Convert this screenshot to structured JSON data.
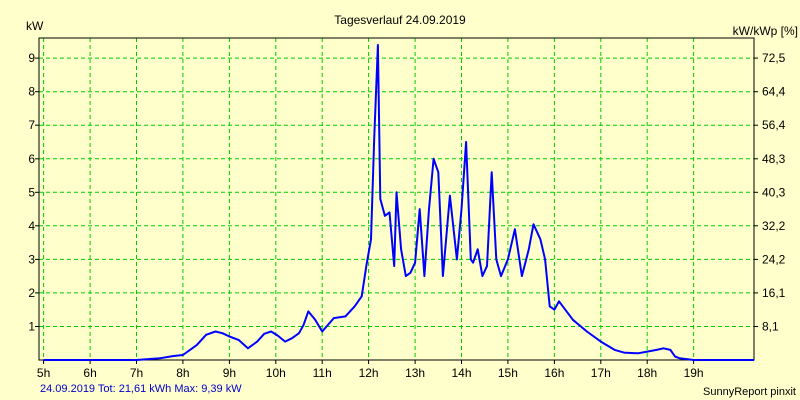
{
  "chart_data": {
    "type": "line",
    "title": "Tagesverlauf 24.09.2019",
    "ylabel_left": "kW",
    "ylabel_right": "kW/kWp [%]",
    "xlim": [
      4.9,
      20.3
    ],
    "ylim": [
      0,
      9.6
    ],
    "x_ticks": [
      {
        "value": 5,
        "label": "5h"
      },
      {
        "value": 6,
        "label": "6h"
      },
      {
        "value": 7,
        "label": "7h"
      },
      {
        "value": 8,
        "label": "8h"
      },
      {
        "value": 9,
        "label": "9h"
      },
      {
        "value": 10,
        "label": "10h"
      },
      {
        "value": 11,
        "label": "11h"
      },
      {
        "value": 12,
        "label": "12h"
      },
      {
        "value": 13,
        "label": "13h"
      },
      {
        "value": 14,
        "label": "14h"
      },
      {
        "value": 15,
        "label": "15h"
      },
      {
        "value": 16,
        "label": "16h"
      },
      {
        "value": 17,
        "label": "17h"
      },
      {
        "value": 18,
        "label": "18h"
      },
      {
        "value": 19,
        "label": "19h"
      }
    ],
    "y_ticks_left": [
      {
        "value": 1,
        "label": "1"
      },
      {
        "value": 2,
        "label": "2"
      },
      {
        "value": 3,
        "label": "3"
      },
      {
        "value": 4,
        "label": "4"
      },
      {
        "value": 5,
        "label": "5"
      },
      {
        "value": 6,
        "label": "6"
      },
      {
        "value": 7,
        "label": "7"
      },
      {
        "value": 8,
        "label": "8"
      },
      {
        "value": 9,
        "label": "9"
      }
    ],
    "y_ticks_right": [
      {
        "value": 1,
        "label": "8,1"
      },
      {
        "value": 2,
        "label": "16,1"
      },
      {
        "value": 3,
        "label": "24,2"
      },
      {
        "value": 4,
        "label": "32,2"
      },
      {
        "value": 5,
        "label": "40,3"
      },
      {
        "value": 6,
        "label": "48,3"
      },
      {
        "value": 7,
        "label": "56,4"
      },
      {
        "value": 8,
        "label": "64,4"
      },
      {
        "value": 9,
        "label": "72,5"
      }
    ],
    "grid": true,
    "colors": {
      "background": "#ffffcc",
      "plot_background": "#ffffcc",
      "grid": "#00cc00",
      "line": "#0000ff",
      "footer_text": "#0000cc"
    },
    "series": [
      {
        "x": [
          5.0,
          7.0,
          7.5,
          7.8,
          8.0,
          8.3,
          8.5,
          8.7,
          8.85,
          9.0,
          9.2,
          9.4,
          9.6,
          9.75,
          9.9,
          10.05,
          10.2,
          10.35,
          10.5,
          10.6,
          10.7,
          10.85,
          11.0,
          11.25,
          11.5,
          11.7,
          11.85,
          11.95,
          12.05,
          12.12,
          12.2,
          12.25,
          12.35,
          12.45,
          12.55,
          12.6,
          12.7,
          12.8,
          12.9,
          13.0,
          13.1,
          13.2,
          13.3,
          13.4,
          13.5,
          13.6,
          13.75,
          13.9,
          14.0,
          14.1,
          14.2,
          14.25,
          14.35,
          14.45,
          14.55,
          14.65,
          14.75,
          14.85,
          15.0,
          15.15,
          15.3,
          15.45,
          15.55,
          15.7,
          15.8,
          15.9,
          16.0,
          16.1,
          16.4,
          16.7,
          17.0,
          17.3,
          17.5,
          17.8,
          18.0,
          18.2,
          18.35,
          18.5,
          18.6,
          18.7,
          19.0,
          20.3
        ],
        "y": [
          0,
          0,
          0.05,
          0.12,
          0.15,
          0.45,
          0.75,
          0.85,
          0.8,
          0.7,
          0.6,
          0.35,
          0.55,
          0.78,
          0.85,
          0.72,
          0.55,
          0.65,
          0.8,
          1.05,
          1.45,
          1.2,
          0.85,
          1.25,
          1.3,
          1.6,
          1.9,
          2.8,
          3.6,
          6.6,
          9.39,
          4.8,
          4.3,
          4.4,
          2.8,
          5.0,
          3.3,
          2.5,
          2.6,
          2.9,
          4.5,
          2.5,
          4.5,
          6.0,
          5.6,
          2.5,
          4.9,
          3.0,
          4.5,
          6.5,
          3.0,
          2.9,
          3.3,
          2.5,
          2.8,
          5.6,
          3.0,
          2.5,
          3.0,
          3.9,
          2.5,
          3.3,
          4.05,
          3.6,
          3.0,
          1.6,
          1.5,
          1.75,
          1.2,
          0.85,
          0.55,
          0.3,
          0.22,
          0.2,
          0.25,
          0.3,
          0.35,
          0.3,
          0.1,
          0.05,
          0,
          0
        ]
      }
    ]
  },
  "footer": {
    "summary": "24.09.2019 Tot: 21,61 kWh Max: 9,39 kW",
    "brand": "SunnyReport pinxit"
  }
}
